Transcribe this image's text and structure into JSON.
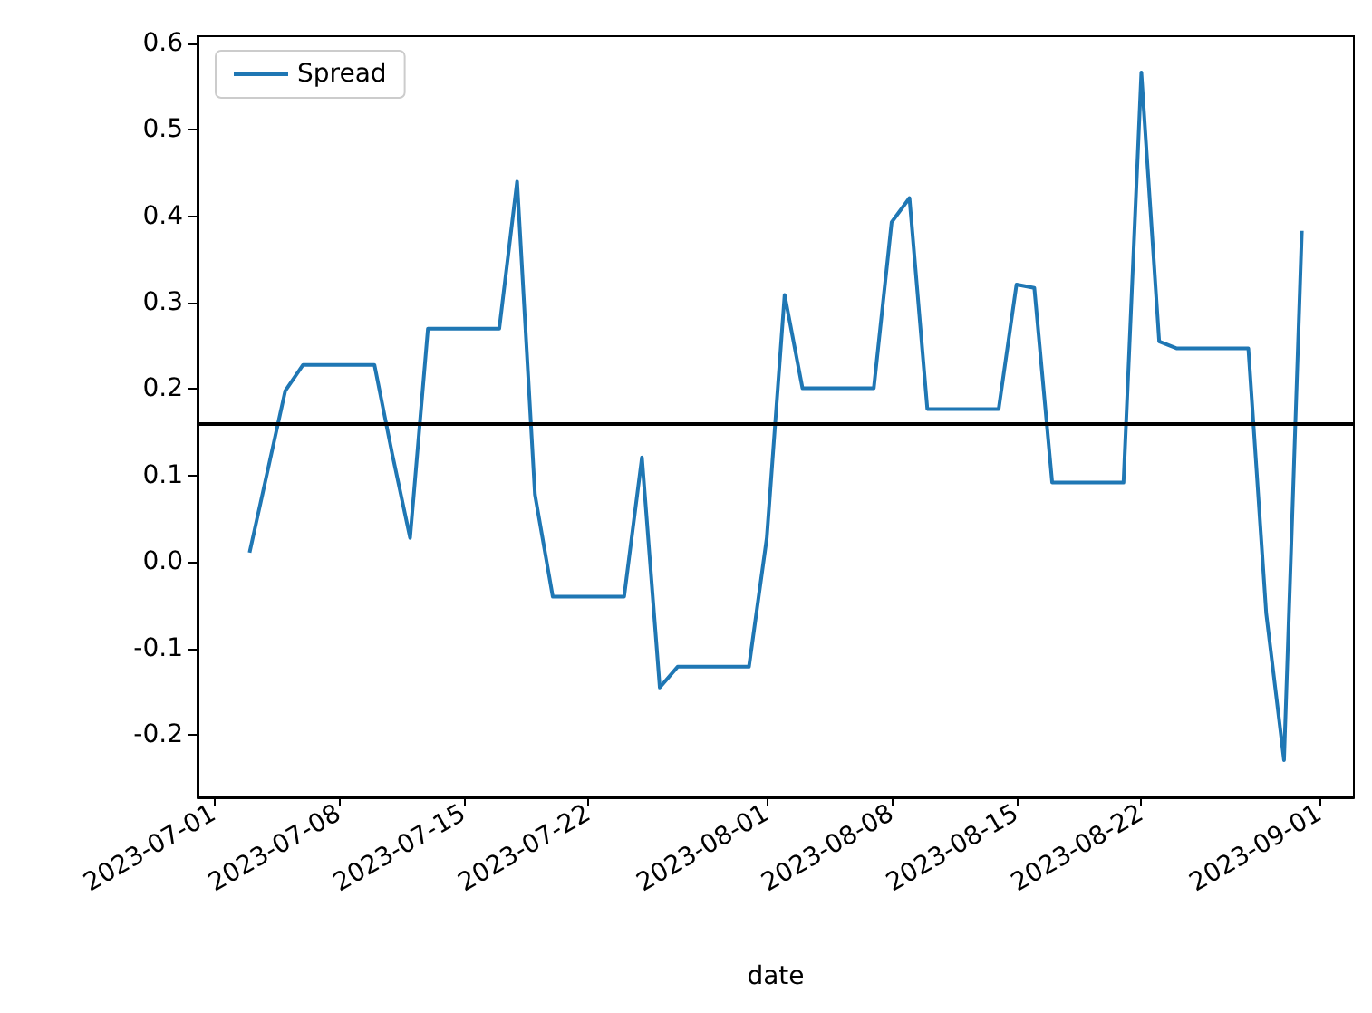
{
  "chart_data": {
    "type": "line",
    "xlabel": "date",
    "x": [
      "2023-07-03",
      "2023-07-05",
      "2023-07-06",
      "2023-07-07",
      "2023-07-10",
      "2023-07-11",
      "2023-07-12",
      "2023-07-13",
      "2023-07-14",
      "2023-07-17",
      "2023-07-18",
      "2023-07-19",
      "2023-07-20",
      "2023-07-21",
      "2023-07-24",
      "2023-07-25",
      "2023-07-26",
      "2023-07-27",
      "2023-07-28",
      "2023-07-31",
      "2023-08-01",
      "2023-08-02",
      "2023-08-03",
      "2023-08-04",
      "2023-08-07",
      "2023-08-08",
      "2023-08-09",
      "2023-08-10",
      "2023-08-11",
      "2023-08-14",
      "2023-08-15",
      "2023-08-16",
      "2023-08-17",
      "2023-08-18",
      "2023-08-21",
      "2023-08-22",
      "2023-08-23",
      "2023-08-24",
      "2023-08-25",
      "2023-08-28",
      "2023-08-29",
      "2023-08-30",
      "2023-08-31"
    ],
    "series": [
      {
        "name": "Spread",
        "color": "#1f77b4",
        "values": [
          0.011,
          0.198,
          0.228,
          0.228,
          0.228,
          0.125,
          0.028,
          0.27,
          0.27,
          0.27,
          0.44,
          0.078,
          -0.04,
          -0.04,
          -0.04,
          0.121,
          -0.145,
          -0.121,
          -0.121,
          -0.121,
          0.028,
          0.309,
          0.201,
          0.201,
          0.201,
          0.393,
          0.421,
          0.177,
          0.177,
          0.177,
          0.321,
          0.317,
          0.092,
          0.092,
          0.092,
          0.566,
          0.255,
          0.247,
          0.247,
          0.247,
          -0.059,
          -0.229,
          0.383
        ]
      }
    ],
    "xlim": [
      "2023-06-30T02:00",
      "2023-09-02T22:00"
    ],
    "xticks": [
      "2023-07-01",
      "2023-07-08",
      "2023-07-15",
      "2023-07-22",
      "2023-08-01",
      "2023-08-08",
      "2023-08-15",
      "2023-08-22",
      "2023-09-01"
    ],
    "ylim": [
      -0.272,
      0.608
    ],
    "yticks": [
      -0.2,
      -0.1,
      {
        "value": 0,
        "label": "0.0"
      },
      0.1,
      0.2,
      0.3,
      0.4,
      0.5,
      0.6
    ],
    "ref_lines": [
      {
        "axis": "y",
        "value": 0.157,
        "color": "#000000"
      }
    ],
    "legend": "top left",
    "grid": false,
    "marker": "none",
    "line_style": "solid"
  }
}
